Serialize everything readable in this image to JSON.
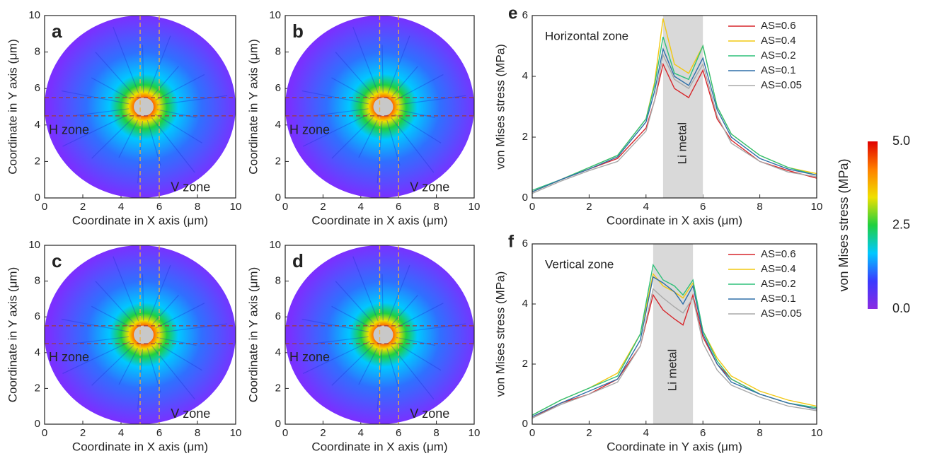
{
  "chart_data": [
    {
      "type": "heatmap",
      "panel_label": "a",
      "xlabel": "Coordinate in X axis (μm)",
      "ylabel": "Coordinate in Y axis (μm)",
      "xlim": [
        0,
        10
      ],
      "ylim": [
        0,
        10
      ],
      "xticks": [
        0,
        2,
        4,
        6,
        8,
        10
      ],
      "yticks": [
        0,
        2,
        4,
        6,
        8,
        10
      ],
      "h_zone": [
        4.5,
        5.5
      ],
      "v_zone": [
        5,
        6
      ],
      "annotations": [
        {
          "text": "H zone",
          "color": "#c0202a"
        },
        {
          "text": "V zone",
          "color": "#f5c518"
        }
      ]
    },
    {
      "type": "heatmap",
      "panel_label": "b",
      "xlabel": "Coordinate in X axis (μm)",
      "ylabel": "Coordinate in Y axis (μm)",
      "xlim": [
        0,
        10
      ],
      "ylim": [
        0,
        10
      ],
      "xticks": [
        0,
        2,
        4,
        6,
        8,
        10
      ],
      "yticks": [
        0,
        2,
        4,
        6,
        8,
        10
      ],
      "h_zone": [
        4.5,
        5.5
      ],
      "v_zone": [
        5,
        6
      ],
      "annotations": [
        {
          "text": "H zone",
          "color": "#c0202a"
        },
        {
          "text": "V zone",
          "color": "#f5c518"
        }
      ]
    },
    {
      "type": "heatmap",
      "panel_label": "c",
      "xlabel": "Coordinate in X axis (μm)",
      "ylabel": "Coordinate in Y axis (μm)",
      "xlim": [
        0,
        10
      ],
      "ylim": [
        0,
        10
      ],
      "xticks": [
        0,
        2,
        4,
        6,
        8,
        10
      ],
      "yticks": [
        0,
        2,
        4,
        6,
        8,
        10
      ],
      "h_zone": [
        4.5,
        5.5
      ],
      "v_zone": [
        5,
        6
      ],
      "annotations": [
        {
          "text": "H zone",
          "color": "#c0202a"
        },
        {
          "text": "V zone",
          "color": "#f5c518"
        }
      ]
    },
    {
      "type": "heatmap",
      "panel_label": "d",
      "xlabel": "Coordinate in X axis (μm)",
      "ylabel": "Coordinate in Y axis (μm)",
      "xlim": [
        0,
        10
      ],
      "ylim": [
        0,
        10
      ],
      "xticks": [
        0,
        2,
        4,
        6,
        8,
        10
      ],
      "yticks": [
        0,
        2,
        4,
        6,
        8,
        10
      ],
      "h_zone": [
        4.5,
        5.5
      ],
      "v_zone": [
        5,
        6
      ],
      "annotations": [
        {
          "text": "H zone",
          "color": "#c0202a"
        },
        {
          "text": "V zone",
          "color": "#f5c518"
        }
      ]
    },
    {
      "type": "line",
      "panel_label": "e",
      "xlabel": "Coordinate in X axis (μm)",
      "ylabel": "von Mises stress (MPa)",
      "xlim": [
        0,
        10
      ],
      "ylim": [
        0,
        6
      ],
      "xticks": [
        0,
        2,
        4,
        6,
        8,
        10
      ],
      "yticks": [
        0,
        2,
        4,
        6
      ],
      "annotation": {
        "text": "Horizontal zone",
        "color": "#c0202a"
      },
      "shaded_region": [
        4.6,
        6.0
      ],
      "shaded_label": "Li metal",
      "x": [
        0,
        1,
        2,
        3,
        4,
        4.3,
        4.6,
        5,
        5.5,
        6,
        6.5,
        7,
        8,
        9,
        10
      ],
      "series": [
        {
          "name": "AS=0.6",
          "color": "#d7262b",
          "values": [
            0.2,
            0.6,
            0.95,
            1.3,
            2.3,
            3.2,
            4.4,
            3.6,
            3.3,
            4.2,
            2.6,
            1.9,
            1.2,
            0.9,
            0.65
          ]
        },
        {
          "name": "AS=0.4",
          "color": "#f2c811",
          "values": [
            0.2,
            0.6,
            1.0,
            1.4,
            2.6,
            3.8,
            5.9,
            4.4,
            4.1,
            5.0,
            3.0,
            2.1,
            1.4,
            1.0,
            0.8
          ]
        },
        {
          "name": "AS=0.2",
          "color": "#2ec07a",
          "values": [
            0.25,
            0.6,
            1.0,
            1.4,
            2.6,
            3.7,
            5.3,
            4.1,
            3.9,
            5.0,
            3.0,
            2.1,
            1.4,
            1.0,
            0.75
          ]
        },
        {
          "name": "AS=0.1",
          "color": "#2f6fa8",
          "values": [
            0.2,
            0.6,
            0.95,
            1.35,
            2.5,
            3.5,
            4.9,
            4.0,
            3.7,
            4.6,
            2.9,
            2.0,
            1.3,
            0.95,
            0.75
          ]
        },
        {
          "name": "AS=0.05",
          "color": "#a8a8a8",
          "values": [
            0.15,
            0.55,
            0.9,
            1.2,
            2.2,
            3.2,
            4.7,
            3.9,
            3.6,
            4.4,
            2.7,
            1.8,
            1.2,
            0.85,
            0.7
          ]
        }
      ]
    },
    {
      "type": "line",
      "panel_label": "f",
      "xlabel": "Coordinate in Y axis (μm)",
      "ylabel": "von Mises stress (MPa)",
      "xlim": [
        0,
        10
      ],
      "ylim": [
        0,
        6
      ],
      "xticks": [
        0,
        2,
        4,
        6,
        8,
        10
      ],
      "yticks": [
        0,
        2,
        4,
        6
      ],
      "annotation": {
        "text": "Vertical zone",
        "color": "#f2c811"
      },
      "shaded_region": [
        4.25,
        5.65
      ],
      "shaded_label": "Li metal",
      "x": [
        0,
        1,
        2,
        3,
        3.8,
        4.25,
        4.6,
        5,
        5.3,
        5.65,
        6,
        6.5,
        7,
        8,
        9,
        10
      ],
      "series": [
        {
          "name": "AS=0.6",
          "color": "#d7262b",
          "values": [
            0.2,
            0.7,
            1.0,
            1.5,
            2.6,
            4.3,
            3.8,
            3.5,
            3.3,
            4.3,
            2.9,
            2.0,
            1.5,
            1.0,
            0.7,
            0.5
          ]
        },
        {
          "name": "AS=0.4",
          "color": "#f2c811",
          "values": [
            0.3,
            0.8,
            1.2,
            1.7,
            3.0,
            5.0,
            4.6,
            4.4,
            4.2,
            4.7,
            3.1,
            2.2,
            1.6,
            1.1,
            0.8,
            0.6
          ]
        },
        {
          "name": "AS=0.2",
          "color": "#2ec07a",
          "values": [
            0.3,
            0.8,
            1.2,
            1.6,
            3.0,
            5.3,
            4.8,
            4.6,
            4.3,
            4.8,
            3.1,
            2.1,
            1.5,
            1.0,
            0.7,
            0.55
          ]
        },
        {
          "name": "AS=0.1",
          "color": "#2f6fa8",
          "values": [
            0.25,
            0.7,
            1.1,
            1.5,
            2.8,
            4.9,
            4.7,
            4.4,
            4.0,
            4.6,
            3.0,
            2.0,
            1.4,
            1.0,
            0.7,
            0.5
          ]
        },
        {
          "name": "AS=0.05",
          "color": "#a8a8a8",
          "values": [
            0.2,
            0.65,
            1.0,
            1.4,
            2.6,
            4.5,
            4.2,
            3.9,
            3.7,
            4.2,
            2.7,
            1.8,
            1.3,
            0.9,
            0.6,
            0.45
          ]
        }
      ]
    },
    {
      "type": "colorbar",
      "label": "von Mises stress (MPa)",
      "lim": [
        0,
        5
      ],
      "ticks": [
        {
          "value": 0,
          "label": "0.0"
        },
        2.5,
        {
          "value": 5,
          "label": "5.0"
        }
      ],
      "colors": [
        "#8a2be2",
        "#3a3aff",
        "#00c8ff",
        "#20d040",
        "#f0e000",
        "#ff8000",
        "#e00000"
      ]
    }
  ]
}
